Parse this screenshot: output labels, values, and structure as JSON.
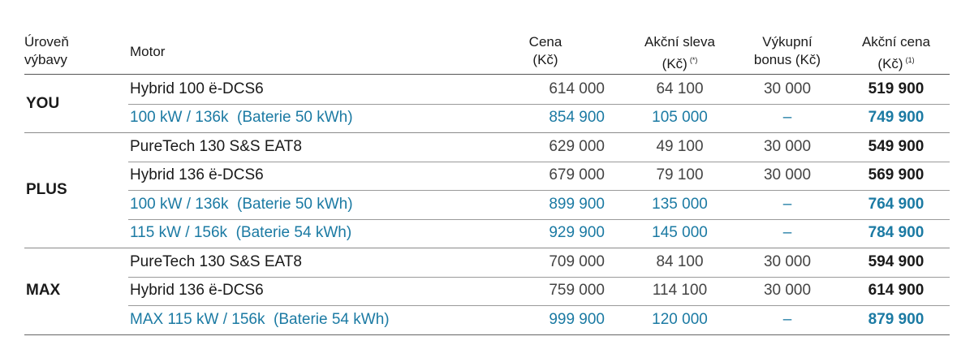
{
  "table": {
    "header": [
      {
        "lines": [
          "Úroveň",
          "výbavy"
        ]
      },
      {
        "lines": [
          "Motor"
        ]
      },
      {
        "lines": [
          "Cena",
          "(Kč)"
        ]
      },
      {
        "lines": [
          "Akční sleva",
          "(Kč)"
        ],
        "note": "(*)"
      },
      {
        "lines": [
          "Výkupní",
          "bonus (Kč)"
        ]
      },
      {
        "lines": [
          "Akční cena",
          "(Kč)"
        ],
        "note": "(1)"
      }
    ],
    "accent_color": "#1b7aa3",
    "groups": [
      {
        "level": "YOU",
        "rows": [
          {
            "cells": [
              "Hybrid 100 ë-DCS6",
              "614 000",
              "64 100",
              "30 000",
              "519 900"
            ],
            "accent": false
          },
          {
            "cells": [
              "100 kW / 136k  (Baterie 50 kWh)",
              "854 900",
              "105 000",
              "–",
              "749 900"
            ],
            "accent": true
          }
        ]
      },
      {
        "level": "PLUS",
        "rows": [
          {
            "cells": [
              "PureTech 130 S&S EAT8",
              "629 000",
              "49 100",
              "30 000",
              "549 900"
            ],
            "accent": false
          },
          {
            "cells": [
              "Hybrid 136 ë-DCS6",
              "679 000",
              "79 100",
              "30 000",
              "569 900"
            ],
            "accent": false
          },
          {
            "cells": [
              "100 kW / 136k  (Baterie 50 kWh)",
              "899 900",
              "135 000",
              "–",
              "764 900"
            ],
            "accent": true
          },
          {
            "cells": [
              "115 kW / 156k  (Baterie 54 kWh)",
              "929 900",
              "145 000",
              "–",
              "784 900"
            ],
            "accent": true
          }
        ]
      },
      {
        "level": "MAX",
        "rows": [
          {
            "cells": [
              "PureTech 130 S&S EAT8",
              "709 000",
              "84 100",
              "30 000",
              "594 900"
            ],
            "accent": false
          },
          {
            "cells": [
              "Hybrid 136 ë-DCS6",
              "759 000",
              "114 100",
              "30 000",
              "614 900"
            ],
            "accent": false
          },
          {
            "cells": [
              "MAX 115 kW / 156k  (Baterie 54 kWh)",
              "999 900",
              "120 000",
              "–",
              "879 900"
            ],
            "accent": true
          }
        ]
      }
    ]
  }
}
